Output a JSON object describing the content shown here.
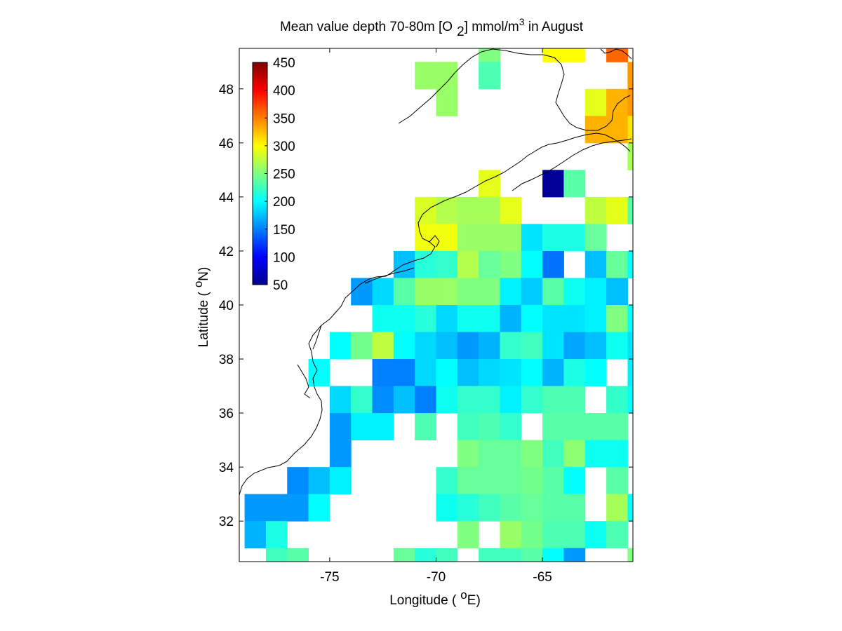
{
  "chart_data": {
    "type": "heatmap",
    "title": "Mean value depth 70-80m [O 2] mmol/m3 in August",
    "title_parts": {
      "main": "Mean value depth 70-80m [O",
      "sub": "2",
      "mid": "] mmol/m",
      "sup": "3",
      "end": " in August"
    },
    "xlabel": "Longitude ( oE)",
    "xlabel_parts": {
      "pre": "Longitude (",
      "sup": "o",
      "post": "E)"
    },
    "ylabel": "Latitude ( oN)",
    "ylabel_parts": {
      "pre": "Latitude (",
      "sup": "o",
      "post": "N)"
    },
    "xlim": [
      -79.25,
      -60.75
    ],
    "ylim": [
      30.5,
      49.5
    ],
    "xticks": [
      -75,
      -70,
      -65
    ],
    "yticks": [
      32,
      34,
      36,
      38,
      40,
      42,
      44,
      46,
      48
    ],
    "cell_size_deg": 1,
    "colorbar": {
      "min": 50,
      "max": 450,
      "ticks": [
        450,
        400,
        350,
        300,
        250,
        200,
        150,
        100,
        50
      ],
      "colormap": "jet",
      "placement": "upper-left inside axes"
    },
    "grid": false,
    "rows": [
      {
        "lat": 49,
        "lon0": -79,
        "values": [
          null,
          null,
          null,
          null,
          null,
          null,
          null,
          null,
          null,
          null,
          null,
          250,
          null,
          null,
          300,
          300,
          null,
          360
        ]
      },
      {
        "lat": 48,
        "lon0": -79,
        "values": [
          null,
          null,
          null,
          null,
          null,
          null,
          null,
          null,
          260,
          260,
          null,
          230,
          null,
          null,
          null,
          null,
          null,
          null,
          340
        ]
      },
      {
        "lat": 47,
        "lon0": -79,
        "values": [
          null,
          null,
          null,
          null,
          null,
          null,
          null,
          null,
          null,
          260,
          null,
          null,
          null,
          null,
          null,
          null,
          290,
          330,
          340
        ]
      },
      {
        "lat": 46,
        "lon0": -79,
        "values": [
          null,
          null,
          null,
          null,
          null,
          null,
          null,
          null,
          null,
          null,
          null,
          null,
          null,
          null,
          null,
          null,
          330,
          330,
          310
        ]
      },
      {
        "lat": 45,
        "lon0": -79,
        "values": [
          null,
          null,
          null,
          null,
          null,
          null,
          null,
          null,
          null,
          null,
          null,
          null,
          null,
          null,
          null,
          null,
          null,
          null,
          265
        ]
      },
      {
        "lat": 44,
        "lon0": -79,
        "values": [
          null,
          null,
          null,
          null,
          null,
          null,
          null,
          null,
          null,
          null,
          null,
          290,
          null,
          null,
          60,
          235,
          null,
          null,
          null
        ]
      },
      {
        "lat": 43,
        "lon0": -79,
        "values": [
          null,
          null,
          null,
          null,
          null,
          null,
          null,
          null,
          285,
          270,
          265,
          265,
          290,
          null,
          null,
          null,
          275,
          290,
          235
        ]
      },
      {
        "lat": 42,
        "lon0": -79,
        "values": [
          null,
          null,
          null,
          null,
          null,
          null,
          null,
          null,
          295,
          295,
          260,
          260,
          260,
          190,
          210,
          210,
          240,
          null
        ]
      },
      {
        "lat": 41,
        "lon0": -79,
        "values": [
          null,
          null,
          null,
          null,
          null,
          null,
          null,
          175,
          215,
          220,
          270,
          240,
          250,
          200,
          145,
          null,
          175,
          240,
          200
        ]
      },
      {
        "lat": 40,
        "lon0": -79,
        "values": [
          null,
          null,
          null,
          null,
          null,
          160,
          185,
          235,
          260,
          260,
          250,
          250,
          195,
          180,
          235,
          205,
          195,
          175
        ]
      },
      {
        "lat": 39,
        "lon0": -79,
        "values": [
          null,
          null,
          null,
          null,
          null,
          null,
          205,
          205,
          215,
          185,
          205,
          205,
          170,
          200,
          190,
          190,
          195,
          250,
          200
        ]
      },
      {
        "lat": 38,
        "lon0": -79,
        "values": [
          null,
          null,
          null,
          null,
          200,
          245,
          275,
          200,
          185,
          175,
          160,
          170,
          220,
          225,
          190,
          165,
          175,
          205,
          190,
          185
        ]
      },
      {
        "lat": 37,
        "lon0": -79,
        "values": [
          null,
          null,
          null,
          200,
          null,
          null,
          150,
          150,
          185,
          200,
          175,
          185,
          190,
          200,
          170,
          210,
          200,
          null,
          195
        ]
      },
      {
        "lat": 36,
        "lon0": -79,
        "values": [
          null,
          null,
          null,
          null,
          185,
          220,
          155,
          175,
          150,
          205,
          220,
          220,
          195,
          220,
          230,
          230,
          null,
          220,
          200,
          235
        ]
      },
      {
        "lat": 35,
        "lon0": -79,
        "values": [
          null,
          null,
          null,
          null,
          160,
          195,
          195,
          null,
          230,
          null,
          225,
          230,
          220,
          null,
          235,
          235,
          235,
          235,
          null,
          235
        ]
      },
      {
        "lat": 34,
        "lon0": -79,
        "values": [
          null,
          null,
          null,
          null,
          160,
          null,
          null,
          null,
          null,
          null,
          250,
          240,
          240,
          250,
          225,
          255,
          205,
          205
        ]
      },
      {
        "lat": 33,
        "lon0": -79,
        "values": [
          null,
          null,
          155,
          175,
          195,
          null,
          null,
          null,
          null,
          220,
          240,
          240,
          240,
          245,
          235,
          200,
          null,
          235
        ]
      },
      {
        "lat": 32,
        "lon0": -79,
        "values": [
          160,
          160,
          160,
          200,
          null,
          null,
          null,
          null,
          null,
          205,
          215,
          225,
          235,
          240,
          235,
          235,
          null,
          265,
          200
        ]
      },
      {
        "lat": 31,
        "lon0": -79,
        "values": [
          170,
          210,
          null,
          null,
          null,
          null,
          null,
          null,
          null,
          null,
          250,
          null,
          260,
          245,
          230,
          230,
          205,
          230
        ]
      },
      {
        "lat": 30,
        "lon0": -79,
        "values": [
          null,
          225,
          235,
          null,
          null,
          null,
          null,
          240,
          215,
          225,
          null,
          225,
          225,
          235,
          200,
          160,
          null,
          null,
          250
        ]
      }
    ]
  }
}
